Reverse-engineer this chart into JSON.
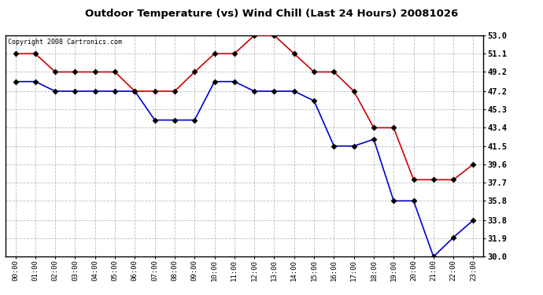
{
  "title": "Outdoor Temperature (vs) Wind Chill (Last 24 Hours) 20081026",
  "copyright": "Copyright 2008 Cartronics.com",
  "hours": [
    "00:00",
    "01:00",
    "02:00",
    "03:00",
    "04:00",
    "05:00",
    "06:00",
    "07:00",
    "08:00",
    "09:00",
    "10:00",
    "11:00",
    "12:00",
    "13:00",
    "14:00",
    "15:00",
    "16:00",
    "17:00",
    "18:00",
    "19:00",
    "20:00",
    "21:00",
    "22:00",
    "23:00"
  ],
  "temp": [
    51.1,
    51.1,
    49.2,
    49.2,
    49.2,
    49.2,
    47.2,
    47.2,
    47.2,
    49.2,
    51.1,
    51.1,
    53.0,
    53.0,
    51.1,
    49.2,
    49.2,
    47.2,
    43.4,
    43.4,
    38.0,
    38.0,
    38.0,
    39.6
  ],
  "windchill": [
    48.2,
    48.2,
    47.2,
    47.2,
    47.2,
    47.2,
    47.2,
    44.2,
    44.2,
    44.2,
    48.2,
    48.2,
    47.2,
    47.2,
    47.2,
    46.2,
    41.5,
    41.5,
    42.2,
    35.8,
    35.8,
    30.0,
    32.0,
    33.8
  ],
  "ylim": [
    30.0,
    53.0
  ],
  "yticks": [
    30.0,
    31.9,
    33.8,
    35.8,
    37.7,
    39.6,
    41.5,
    43.4,
    45.3,
    47.2,
    49.2,
    51.1,
    53.0
  ],
  "temp_color": "#cc0000",
  "windchill_color": "#0000cc",
  "grid_color": "#bbbbbb",
  "bg_color": "#ffffff",
  "marker": "D",
  "marker_size": 3.5,
  "linewidth": 1.2
}
